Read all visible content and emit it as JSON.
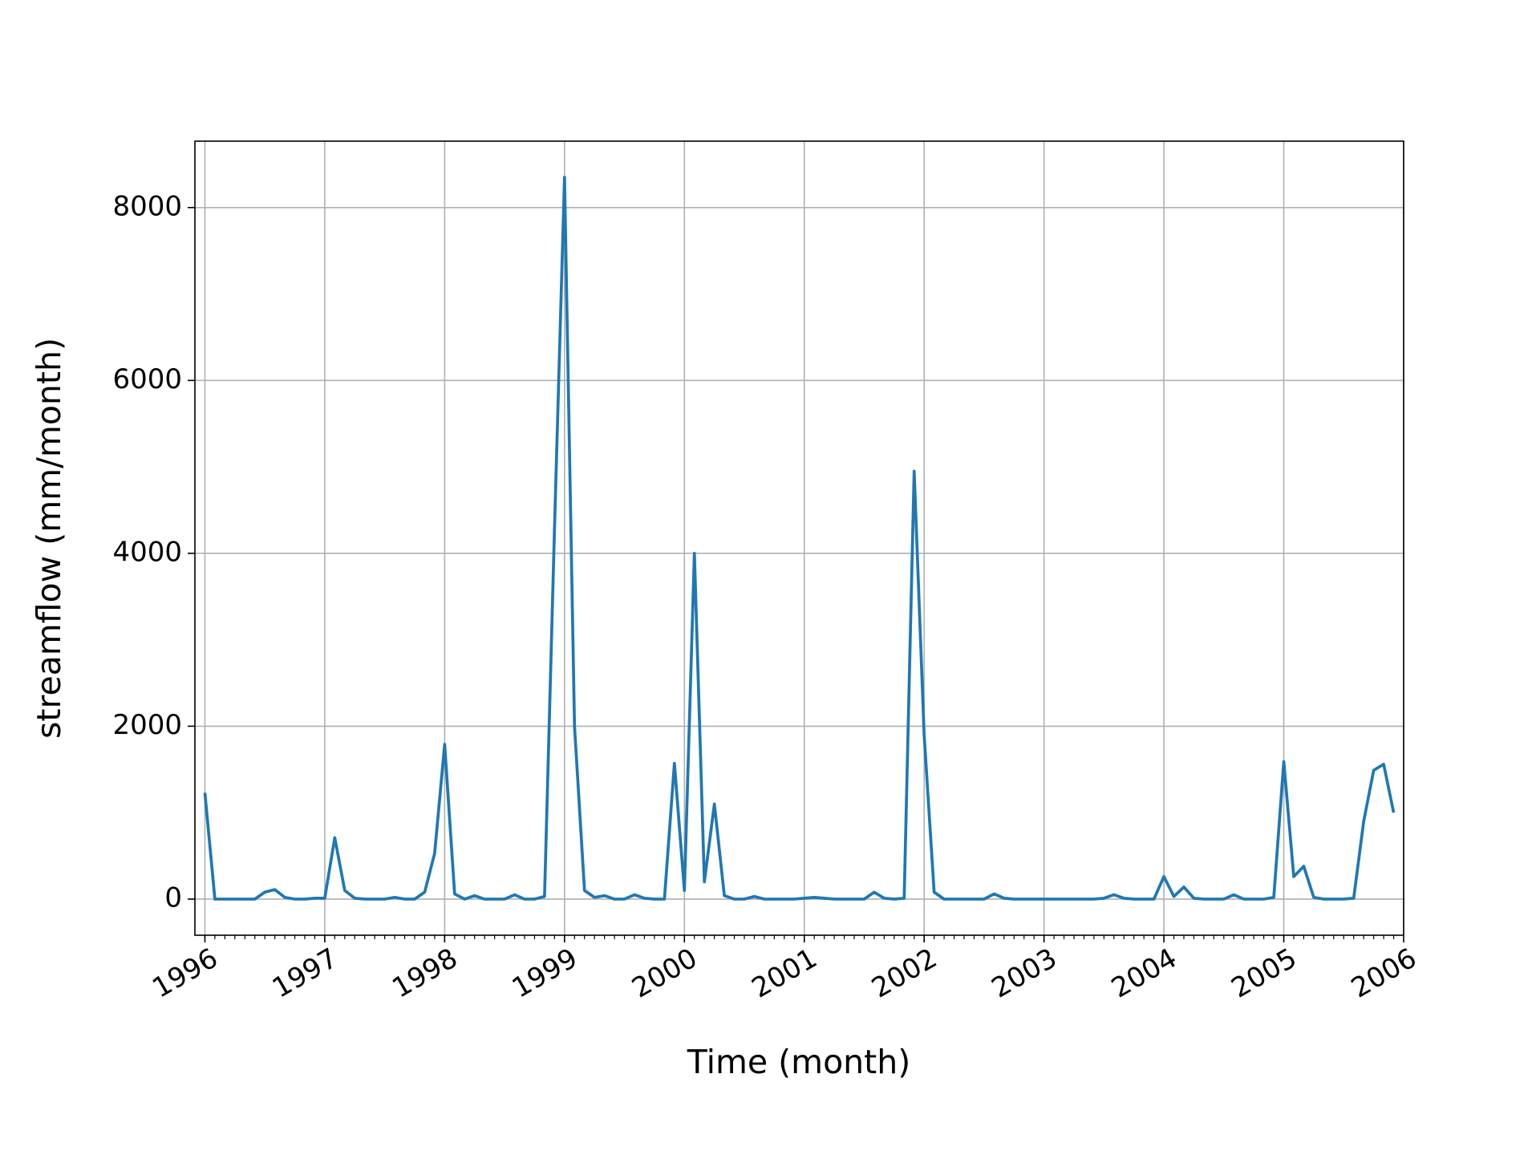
{
  "chart_data": {
    "type": "line",
    "xlabel": "Time (month)",
    "ylabel": "streamflow (mm/month)",
    "x": [
      "1996-01",
      "1996-02",
      "1996-03",
      "1996-04",
      "1996-05",
      "1996-06",
      "1996-07",
      "1996-08",
      "1996-09",
      "1996-10",
      "1996-11",
      "1996-12",
      "1997-01",
      "1997-02",
      "1997-03",
      "1997-04",
      "1997-05",
      "1997-06",
      "1997-07",
      "1997-08",
      "1997-09",
      "1997-10",
      "1997-11",
      "1997-12",
      "1998-01",
      "1998-02",
      "1998-03",
      "1998-04",
      "1998-05",
      "1998-06",
      "1998-07",
      "1998-08",
      "1998-09",
      "1998-10",
      "1998-11",
      "1998-12",
      "1999-01",
      "1999-02",
      "1999-03",
      "1999-04",
      "1999-05",
      "1999-06",
      "1999-07",
      "1999-08",
      "1999-09",
      "1999-10",
      "1999-11",
      "1999-12",
      "2000-01",
      "2000-02",
      "2000-03",
      "2000-04",
      "2000-05",
      "2000-06",
      "2000-07",
      "2000-08",
      "2000-09",
      "2000-10",
      "2000-11",
      "2000-12",
      "2001-01",
      "2001-02",
      "2001-03",
      "2001-04",
      "2001-05",
      "2001-06",
      "2001-07",
      "2001-08",
      "2001-09",
      "2001-10",
      "2001-11",
      "2001-12",
      "2002-01",
      "2002-02",
      "2002-03",
      "2002-04",
      "2002-05",
      "2002-06",
      "2002-07",
      "2002-08",
      "2002-09",
      "2002-10",
      "2002-11",
      "2002-12",
      "2003-01",
      "2003-02",
      "2003-03",
      "2003-04",
      "2003-05",
      "2003-06",
      "2003-07",
      "2003-08",
      "2003-09",
      "2003-10",
      "2003-11",
      "2003-12",
      "2004-01",
      "2004-02",
      "2004-03",
      "2004-04",
      "2004-05",
      "2004-06",
      "2004-07",
      "2004-08",
      "2004-09",
      "2004-10",
      "2004-11",
      "2004-12",
      "2005-01",
      "2005-02",
      "2005-03",
      "2005-04",
      "2005-05",
      "2005-06",
      "2005-07",
      "2005-08",
      "2005-09",
      "2005-10",
      "2005-11",
      "2005-12"
    ],
    "series": [
      {
        "color": "#1f77b4",
        "values": [
          1230,
          0,
          0,
          0,
          0,
          0,
          80,
          110,
          20,
          0,
          0,
          10,
          10,
          710,
          100,
          10,
          0,
          0,
          0,
          20,
          0,
          0,
          80,
          530,
          1790,
          60,
          0,
          40,
          0,
          0,
          0,
          50,
          0,
          0,
          30,
          4300,
          8350,
          2000,
          100,
          20,
          40,
          0,
          0,
          50,
          10,
          0,
          0,
          1570,
          100,
          4000,
          200,
          1100,
          40,
          0,
          0,
          30,
          0,
          0,
          0,
          0,
          10,
          20,
          10,
          0,
          0,
          0,
          0,
          80,
          10,
          0,
          10,
          4950,
          1900,
          80,
          0,
          0,
          0,
          0,
          0,
          60,
          10,
          0,
          0,
          0,
          0,
          0,
          0,
          0,
          0,
          0,
          10,
          50,
          10,
          0,
          0,
          0,
          260,
          30,
          140,
          10,
          0,
          0,
          0,
          50,
          0,
          0,
          0,
          20,
          1590,
          260,
          380,
          20,
          0,
          0,
          0,
          10,
          900,
          1490,
          1560,
          1000
        ]
      }
    ],
    "xlim": [
      "1995-12",
      "2006-01"
    ],
    "xticks": [
      {
        "value": "1996-01",
        "label": "1996"
      },
      {
        "value": "1997-01",
        "label": "1997"
      },
      {
        "value": "1998-01",
        "label": "1998"
      },
      {
        "value": "1999-01",
        "label": "1999"
      },
      {
        "value": "2000-01",
        "label": "2000"
      },
      {
        "value": "2001-01",
        "label": "2001"
      },
      {
        "value": "2002-01",
        "label": "2002"
      },
      {
        "value": "2003-01",
        "label": "2003"
      },
      {
        "value": "2004-01",
        "label": "2004"
      },
      {
        "value": "2005-01",
        "label": "2005"
      },
      {
        "value": "2006-01",
        "label": "2006"
      }
    ],
    "ylim": [
      -418,
      8768
    ],
    "yticks": [
      0,
      2000,
      4000,
      6000,
      8000
    ],
    "grid": true
  }
}
